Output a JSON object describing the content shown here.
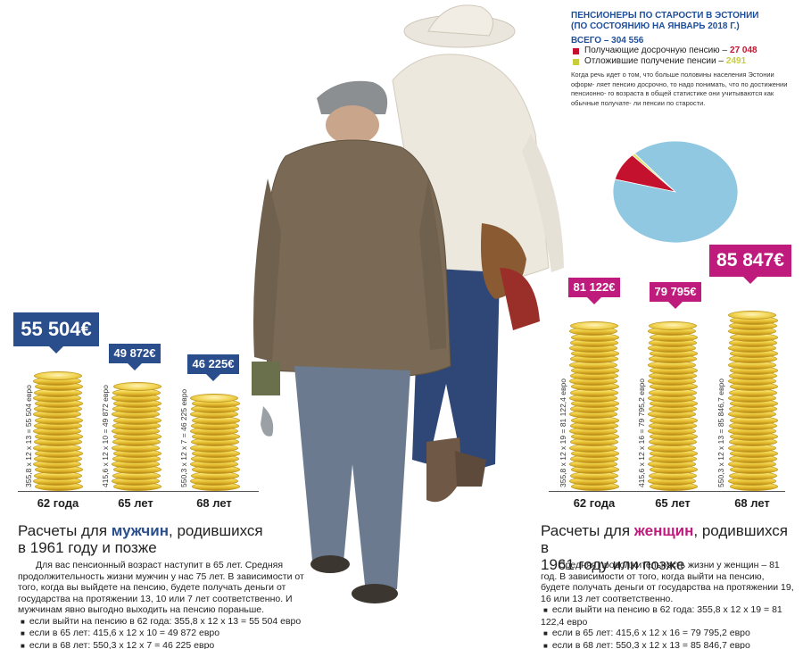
{
  "chart_data": [
    {
      "type": "bar",
      "group": "men",
      "categories": [
        "62 года",
        "65 лет",
        "68 лет"
      ],
      "values": [
        55504,
        49872,
        46225
      ],
      "value_labels": [
        "55 504€",
        "49 872€",
        "46 225€"
      ],
      "formulas": [
        "355,8 x 12 x 13 = 55 504 евро",
        "415,6 x 12 x 10 = 49 872 евро",
        "550,3 x 12 x 7 = 46 225 евро"
      ]
    },
    {
      "type": "bar",
      "group": "women",
      "categories": [
        "62 года",
        "65 лет",
        "68 лет"
      ],
      "values": [
        81122,
        79795,
        85847
      ],
      "value_labels": [
        "81 122€",
        "79 795€",
        "85 847€"
      ],
      "formulas": [
        "355,8 x 12 x 19 = 81 122,4 евро",
        "415,6 x 12 x 16 = 79 795,2 евро",
        "550,3 x 12 x 13 = 85 846,7 евро"
      ]
    },
    {
      "type": "pie",
      "title": "ПЕНСИОНЕРЫ ПО СТАРОСТИ В ЭСТОНИИ",
      "subtitle": "(ПО СОСТОЯНИЮ НА ЯНВАРЬ 2018 Г.)",
      "total_label": "ВСЕГО – 304 556",
      "total": 304556,
      "slices": [
        {
          "name": "Получающие досрочную пенсию –",
          "value": 27048,
          "value_label": "27 048",
          "color": "#c4122e"
        },
        {
          "name": "Отложившие получение пенсии –",
          "value": 2491,
          "value_label": "2491",
          "color": "#dfe36a"
        },
        {
          "name": "",
          "value": 275017,
          "color": "#8fc8e0"
        }
      ],
      "note": "Когда речь идет о том, что больше половины населения Эстонии оформ- ляет пенсию досрочно, то надо понимать, что по достижении пенсионно- го возраста в общей статистике они учитываются как обычные получате- ли пенсии по старости."
    }
  ],
  "texts": {
    "men": {
      "heading_pre": "Расчеты для ",
      "heading_hl": "мужчин",
      "heading_post": ", родившихся",
      "heading_line2": "в 1961 году и позже",
      "paragraph": "Для вас пенсионный возраст наступит в 65 лет. Средняя продолжительность жизни мужчин у нас 75 лет. В зависимости от того, когда вы выйдете на пенсию, будете получать деньги от государства на протяжении 13, 10 или 7 лет соответственно. И мужчинам явно выгодно выходить на пенсию пораньше.",
      "items": [
        "если выйти на пенсию в 62 года: 355,8 x 12 x 13 = 55 504 евро",
        "если в 65 лет: 415,6 x 12 x 10 = 49 872 евро",
        "если в 68 лет: 550,3 x 12 x 7 = 46 225 евро"
      ]
    },
    "women": {
      "heading_pre": "Расчеты для ",
      "heading_hl": "женщин",
      "heading_post": ", родившихся в",
      "heading_line2": "1961 году или позже",
      "paragraph": "Средняя продолжительность жизни у женщин – 81 год. В зависимости от того, когда выйти на пенсию, будете получать деньги от государства на протяжении 19, 16 или 13 лет соответственно.",
      "items": [
        "если выйти на пенсию в 62 года: 355,8 x 12 x 19 = 81 122,4 евро",
        "если в 65 лет: 415,6 x 12 x 16 = 79 795,2 евро",
        "если в 68 лет: 550,3 x 12 x 13 = 85 846,7 евро"
      ]
    }
  }
}
